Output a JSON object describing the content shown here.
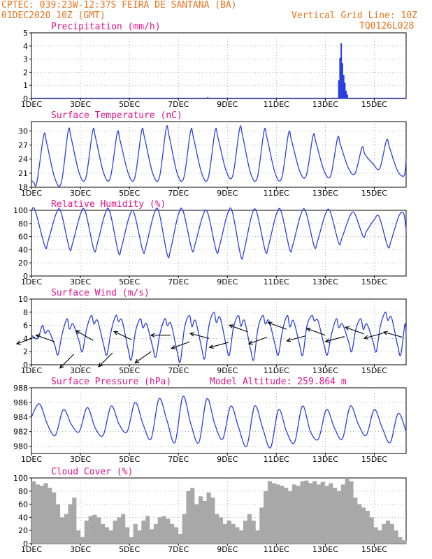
{
  "header": {
    "line1": "CPTEC:   039:23W-12:37S  FEIRA DE SANTANA (BA)",
    "line2": "01DEC2020 10Z (GMT)",
    "grid_note": "Vertical Grid Line: 10Z",
    "code": "TQ0126L028"
  },
  "colors": {
    "header": "#e8731c",
    "title": "#e0158a",
    "line": "#2a3fe0",
    "arrow": "#000000",
    "cloud": "#a8a8a8",
    "axis": "#000000"
  },
  "x_axis": {
    "tick_labels": [
      "1DEC",
      "3DEC",
      "5DEC",
      "7DEC",
      "9DEC",
      "11DEC",
      "13DEC",
      "15DEC"
    ],
    "tick_days": [
      1,
      3,
      5,
      7,
      9,
      11,
      13,
      15
    ],
    "range_days": [
      1,
      16.3
    ]
  },
  "chart_data": [
    {
      "id": "precip",
      "type": "bar",
      "title": "Precipitation (mm/h)",
      "ylim": [
        0,
        5
      ],
      "yticks": [
        0,
        1,
        2,
        3,
        4,
        5
      ],
      "x_days": [
        8.2,
        13.55,
        13.6,
        13.65,
        13.7,
        13.75,
        13.8,
        13.85,
        13.9
      ],
      "values": [
        0.1,
        1.4,
        3.1,
        4.2,
        2.7,
        1.8,
        1.2,
        0.6,
        0.3
      ]
    },
    {
      "id": "temp",
      "type": "line",
      "title": "Surface Temperature (nC)",
      "ylim": [
        18,
        32
      ],
      "yticks": [
        18,
        21,
        24,
        27,
        30
      ],
      "day_maxima": [
        29.0,
        30.0,
        30.0,
        29.5,
        30.0,
        30.5,
        30.0,
        30.0,
        30.5,
        30.0,
        29.5,
        29.0,
        28.5,
        26.5,
        28.0,
        29.0
      ],
      "day_minima": [
        19.0,
        20.0,
        20.0,
        20.0,
        20.0,
        20.0,
        20.0,
        20.5,
        20.0,
        20.0,
        20.5,
        20.5,
        21.0,
        22.0,
        20.5
      ],
      "end_value": 24.0
    },
    {
      "id": "rh",
      "type": "line",
      "title": "Relative Humidity (%)",
      "ylim": [
        0,
        100
      ],
      "yticks": [
        0,
        20,
        40,
        60,
        80,
        100
      ],
      "day_minima": [
        45,
        42,
        40,
        36,
        38,
        32,
        40,
        38,
        30,
        38,
        40,
        45,
        50,
        60,
        45,
        40
      ],
      "day_maxima": [
        98,
        98,
        98,
        95,
        98,
        98,
        96,
        98,
        97,
        98,
        98,
        98,
        95,
        90,
        95
      ],
      "end_value": 70
    },
    {
      "id": "wind",
      "type": "line",
      "title": "Surface Wind (m/s)",
      "ylim": [
        0,
        10
      ],
      "yticks": [
        0,
        2,
        4,
        6,
        8,
        10
      ],
      "day_maxima": [
        6.0,
        7.0,
        7.5,
        7.5,
        7.0,
        7.0,
        7.5,
        8.0,
        7.5,
        7.5,
        7.5,
        7.5,
        7.0,
        7.0,
        8.0,
        8.0
      ],
      "day_minima": [
        1.5,
        2.0,
        1.5,
        0.8,
        1.2,
        0.5,
        1.0,
        1.5,
        0.8,
        1.5,
        1.5,
        1.5,
        2.0,
        2.0,
        1.5
      ],
      "arrows_speed": [
        4.2,
        3.5,
        1.6,
        3.7,
        1.8,
        3.8,
        2.0,
        4.5,
        3.5,
        4.0,
        3.4,
        5.0,
        4.2,
        5.4,
        4.4,
        4.5,
        4.3,
        4.7,
        4.8,
        4.2
      ],
      "arrows_dir_deg": [
        200,
        160,
        225,
        150,
        225,
        155,
        215,
        180,
        200,
        165,
        195,
        160,
        200,
        160,
        195,
        160,
        195,
        160,
        195,
        165
      ]
    },
    {
      "id": "pressure",
      "type": "line",
      "title": "Surface Pressure (hPa)",
      "annotation": "Model Altitude: 259.864 m",
      "ylim": [
        979,
        988
      ],
      "yticks": [
        980,
        982,
        984,
        986,
        988
      ],
      "values": [
        984.0,
        985.8,
        983.0,
        981.5,
        985.0,
        983.0,
        982.0,
        985.3,
        982.5,
        981.5,
        985.5,
        983.0,
        982.0,
        986.0,
        983.0,
        981.0,
        986.5,
        983.5,
        980.5,
        986.8,
        983.0,
        980.5,
        986.5,
        983.0,
        981.0,
        985.5,
        982.5,
        980.0,
        985.5,
        982.5,
        979.8,
        985.0,
        982.0,
        980.5,
        985.5,
        982.0,
        981.0,
        985.0,
        982.5,
        981.0,
        985.5,
        983.0,
        981.5,
        985.0,
        982.5,
        980.5,
        984.5,
        982.0
      ]
    },
    {
      "id": "cloud",
      "type": "bar",
      "title": "Cloud Cover (%)",
      "ylim": [
        0,
        100
      ],
      "yticks": [
        0,
        20,
        40,
        60,
        80,
        100
      ],
      "values": [
        95,
        90,
        88,
        92,
        85,
        78,
        60,
        40,
        45,
        60,
        70,
        20,
        10,
        35,
        42,
        44,
        40,
        30,
        25,
        20,
        35,
        40,
        45,
        25,
        10,
        30,
        20,
        35,
        42,
        22,
        30,
        40,
        42,
        38,
        30,
        25,
        15,
        45,
        80,
        85,
        60,
        72,
        65,
        78,
        70,
        45,
        40,
        30,
        35,
        30,
        25,
        20,
        35,
        45,
        35,
        20,
        55,
        80,
        95,
        92,
        90,
        88,
        85,
        80,
        90,
        88,
        95,
        96,
        92,
        95,
        90,
        94,
        88,
        92,
        85,
        80,
        90,
        100,
        95,
        70,
        60,
        55,
        50,
        40,
        25,
        20,
        30,
        35,
        30,
        20,
        10,
        5
      ]
    }
  ]
}
